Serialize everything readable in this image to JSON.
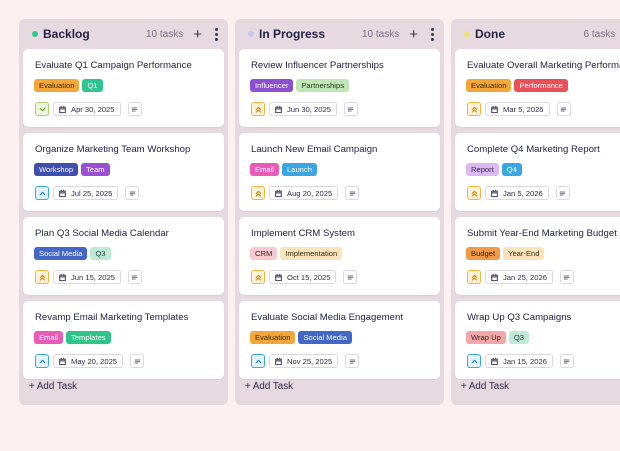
{
  "columns": [
    {
      "title": "Backlog",
      "count": "10 tasks",
      "dot_color": "#34c98c",
      "cards": [
        {
          "title": "Evaluate Q1 Campaign Performance",
          "tags": [
            {
              "label": "Evaluation",
              "bg": "#f3a63a",
              "fg": "#3a2a00"
            },
            {
              "label": "Q1",
              "bg": "#2fc492",
              "fg": "#ffffff"
            }
          ],
          "priority": "down",
          "date": "Apr 30, 2025"
        },
        {
          "title": "Organize Marketing Team Workshop",
          "tags": [
            {
              "label": "Workshop",
              "bg": "#3f4fb0",
              "fg": "#ffffff"
            },
            {
              "label": "Team",
              "bg": "#9b4fd2",
              "fg": "#ffffff"
            }
          ],
          "priority": "up",
          "date": "Jul 25, 2025"
        },
        {
          "title": "Plan Q3 Social Media Calendar",
          "tags": [
            {
              "label": "Social Media",
              "bg": "#4467c7",
              "fg": "#ffffff"
            },
            {
              "label": "Q3",
              "bg": "#bfead8",
              "fg": "#1f3a30"
            }
          ],
          "priority": "double-up",
          "date": "Jun 15, 2025"
        },
        {
          "title": "Revamp Email Marketing Templates",
          "tags": [
            {
              "label": "Email",
              "bg": "#ea5ab7",
              "fg": "#ffffff"
            },
            {
              "label": "Templates",
              "bg": "#2fc48a",
              "fg": "#ffffff"
            }
          ],
          "priority": "up",
          "date": "May 20, 2025"
        }
      ]
    },
    {
      "title": "In Progress",
      "count": "10 tasks",
      "dot_color": "#c9c5f0",
      "cards": [
        {
          "title": "Review Influencer Partnerships",
          "tags": [
            {
              "label": "Influencer",
              "bg": "#8a4fd2",
              "fg": "#ffffff"
            },
            {
              "label": "Partnerships",
              "bg": "#bfe6b6",
              "fg": "#1f3a20"
            }
          ],
          "priority": "double-up",
          "date": "Jun 30, 2025"
        },
        {
          "title": "Launch New Email Campaign",
          "tags": [
            {
              "label": "Email",
              "bg": "#ea5ab7",
              "fg": "#ffffff"
            },
            {
              "label": "Launch",
              "bg": "#3aa6e4",
              "fg": "#ffffff"
            }
          ],
          "priority": "double-up",
          "date": "Aug 20, 2025"
        },
        {
          "title": "Implement CRM System",
          "tags": [
            {
              "label": "CRM",
              "bg": "#f9c9d2",
              "fg": "#3a1f25"
            },
            {
              "label": "Implementation",
              "bg": "#fbe3bb",
              "fg": "#3a2f15"
            }
          ],
          "priority": "double-up",
          "date": "Oct 15, 2025"
        },
        {
          "title": "Evaluate Social Media Engagement",
          "tags": [
            {
              "label": "Evaluation",
              "bg": "#f3a63a",
              "fg": "#3a2a00"
            },
            {
              "label": "Social Media",
              "bg": "#4467c7",
              "fg": "#ffffff"
            }
          ],
          "priority": "up",
          "date": "Nov 25, 2025"
        }
      ]
    },
    {
      "title": "Done",
      "count": "6 tasks",
      "dot_color": "#e9e37a",
      "cards": [
        {
          "title": "Evaluate Overall Marketing Performance",
          "tags": [
            {
              "label": "Evaluation",
              "bg": "#f3a63a",
              "fg": "#3a2a00"
            },
            {
              "label": "Performance",
              "bg": "#e9505a",
              "fg": "#ffffff"
            }
          ],
          "priority": "double-up",
          "date": "Mar 5, 2026"
        },
        {
          "title": "Complete Q4 Marketing Report",
          "tags": [
            {
              "label": "Report",
              "bg": "#dcb8f2",
              "fg": "#3a1f45"
            },
            {
              "label": "Q4",
              "bg": "#3aa6e4",
              "fg": "#ffffff"
            }
          ],
          "priority": "double-up",
          "date": "Jan 5, 2026"
        },
        {
          "title": "Submit Year-End Marketing Budget",
          "tags": [
            {
              "label": "Budget",
              "bg": "#f39a4a",
              "fg": "#3a2000"
            },
            {
              "label": "Year-End",
              "bg": "#fbe3bb",
              "fg": "#3a2f15"
            }
          ],
          "priority": "double-up",
          "date": "Jan 25, 2026"
        },
        {
          "title": "Wrap Up Q3 Campaigns",
          "tags": [
            {
              "label": "Wrap Up",
              "bg": "#f2a8a6",
              "fg": "#3a1f1f"
            },
            {
              "label": "Q3",
              "bg": "#bfead8",
              "fg": "#1f3a30"
            }
          ],
          "priority": "up",
          "date": "Jan 15, 2026"
        }
      ]
    }
  ],
  "add_task_label": "+ Add Task",
  "icons": {
    "add_column_task": "plus-icon",
    "column_menu": "more-vertical-icon",
    "date": "calendar-icon",
    "description": "description-lines-icon",
    "priority_up": "chevron-up-icon",
    "priority_double_up": "chevrons-up-icon",
    "priority_down": "chevron-down-icon"
  },
  "colors": {
    "background": "#fcefef",
    "column_bg": "#e6d9df",
    "priority_up_border": "#3aa6e4",
    "priority_up_bg": "#e3f2fb",
    "priority_double_up_border": "#f3b43a",
    "priority_double_up_bg": "#fdf3dd",
    "priority_down_border": "#a9d06a",
    "priority_down_bg": "#eef6e0"
  }
}
